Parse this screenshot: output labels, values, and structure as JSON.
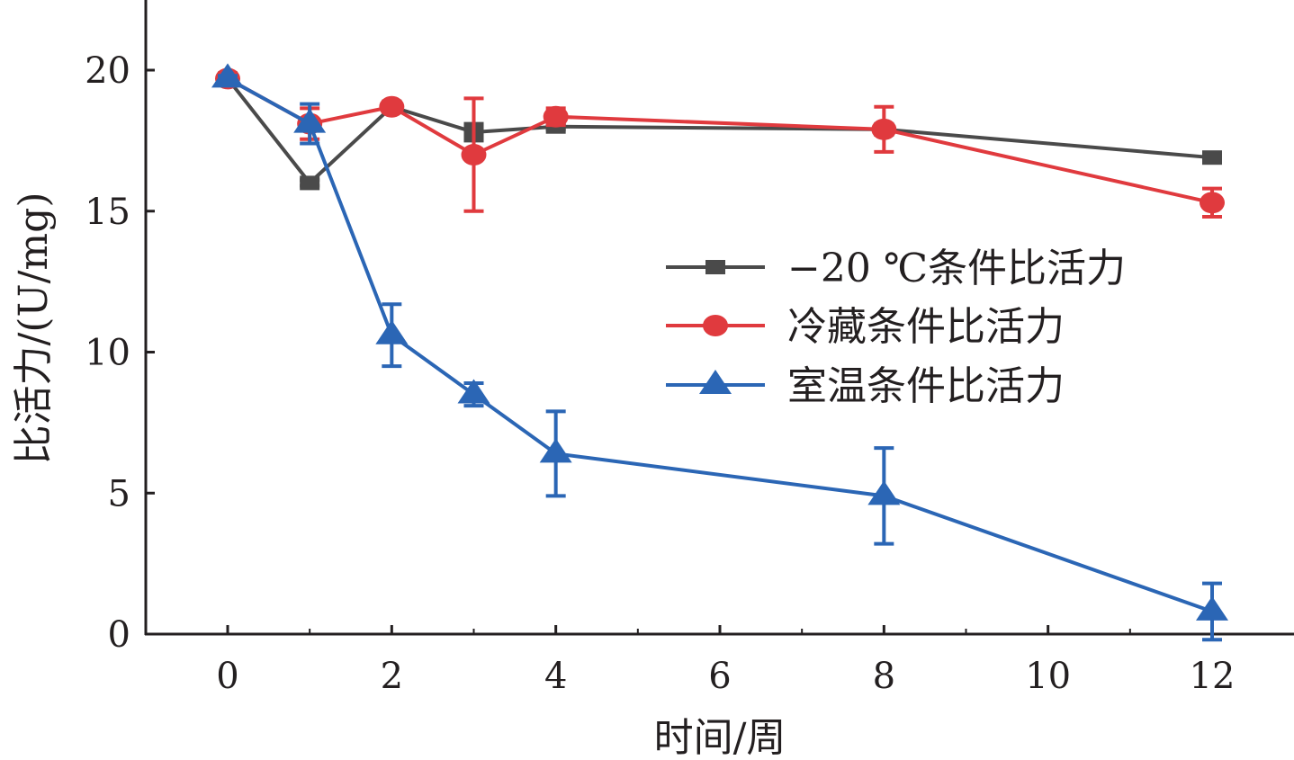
{
  "chart_data": {
    "type": "line",
    "title": "",
    "xlabel": "时间/周",
    "ylabel": "比活力/(U/mg)",
    "xlim": [
      -1,
      12.8
    ],
    "ylim": [
      0,
      22
    ],
    "x_ticks": [
      0,
      2,
      4,
      6,
      8,
      10,
      12
    ],
    "y_ticks": [
      0,
      5,
      10,
      15,
      20
    ],
    "grid": false,
    "legend_position": "right-middle",
    "x": [
      0,
      1,
      2,
      3,
      4,
      8,
      12
    ],
    "series": [
      {
        "name": "−20 ℃条件比活力",
        "color": "#4a4a4a",
        "marker": "square",
        "values": [
          19.7,
          16.0,
          18.7,
          17.8,
          18.0,
          17.9,
          16.9
        ],
        "errors": [
          0.1,
          0.1,
          0.1,
          0.3,
          0.1,
          0.1,
          0.1
        ]
      },
      {
        "name": "冷藏条件比活力",
        "color": "#e03a3e",
        "marker": "circle",
        "values": [
          19.7,
          18.1,
          18.7,
          17.0,
          18.35,
          17.9,
          15.3
        ],
        "errors": [
          0.1,
          0.55,
          0.1,
          2.0,
          0.3,
          0.8,
          0.5
        ]
      },
      {
        "name": "室温条件比活力",
        "color": "#2b66b5",
        "marker": "triangle",
        "values": [
          19.7,
          18.1,
          10.6,
          8.5,
          6.4,
          4.9,
          0.8
        ],
        "errors": [
          0.1,
          0.7,
          1.1,
          0.4,
          1.5,
          1.7,
          1.0
        ]
      }
    ]
  }
}
